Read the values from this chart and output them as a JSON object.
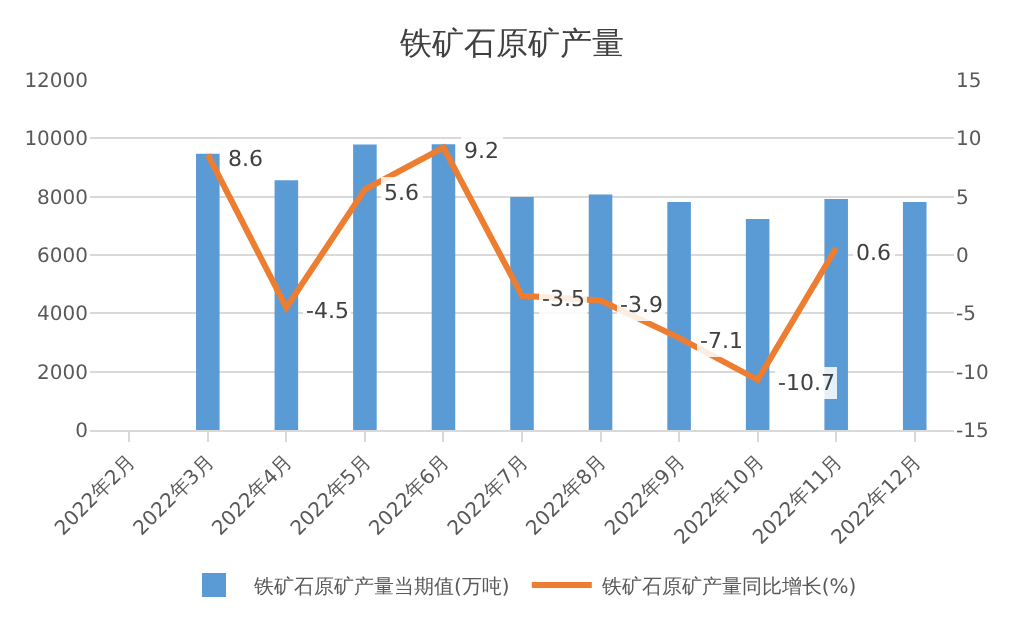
{
  "chart_data": {
    "type": "bar",
    "title": "铁矿石原矿产量",
    "categories": [
      "2022年2月",
      "2022年3月",
      "2022年4月",
      "2022年5月",
      "2022年6月",
      "2022年7月",
      "2022年8月",
      "2022年9月",
      "2022年10月",
      "2022年11月",
      "2022年12月"
    ],
    "series": [
      {
        "name": "铁矿石原矿产量当期值(万吨)",
        "color": "#5b9bd5",
        "values": [
          null,
          9470,
          8560,
          9790,
          9800,
          7990,
          8070,
          7820,
          7230,
          7920,
          7820
        ]
      },
      {
        "name": "铁矿石原矿产量同比增长(%)",
        "type": "line",
        "axis": "y2",
        "color": "#ed7d31",
        "values": [
          null,
          8.6,
          -4.5,
          5.6,
          9.2,
          -3.5,
          -3.9,
          -7.1,
          -10.7,
          0.6,
          null
        ],
        "value_labels": [
          null,
          "8.6",
          "-4.5",
          "5.6",
          "9.2",
          "-3.5",
          "-3.9",
          "-7.1",
          "-10.7",
          "0.6",
          null
        ]
      }
    ],
    "ylim": [
      0,
      12000
    ],
    "yticks": [
      0,
      2000,
      4000,
      6000,
      8000,
      10000,
      12000
    ],
    "y2lim": [
      -15,
      15
    ],
    "y2ticks": [
      -15,
      -10,
      -5,
      0,
      5,
      10,
      15
    ],
    "grid": "y",
    "legend": "bottom",
    "marker": "none"
  }
}
